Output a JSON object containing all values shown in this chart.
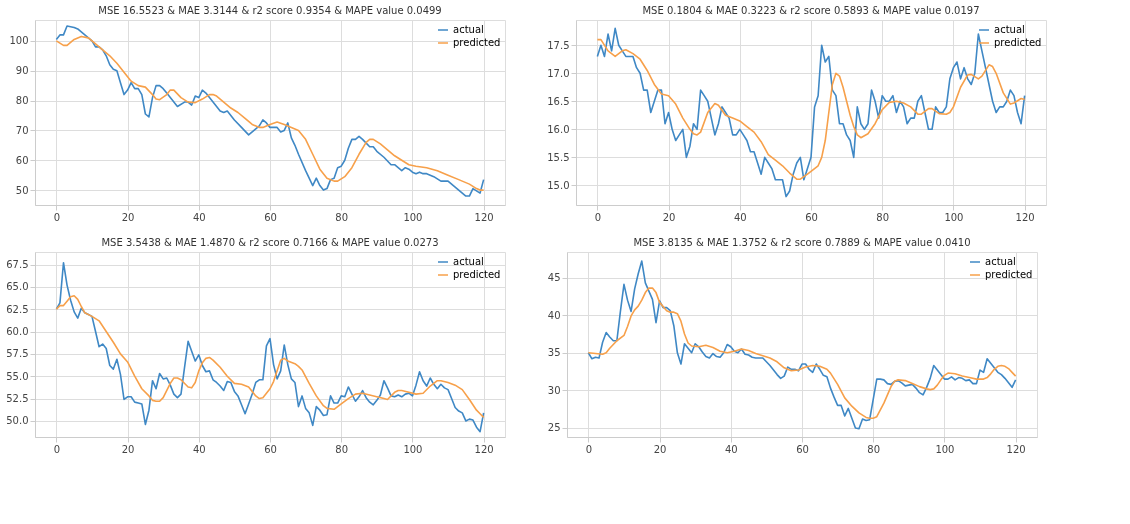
{
  "chart_data": [
    {
      "type": "line",
      "title": "MSE    16.5523  &  MAE    3.3144 & r2 score    0.9354 & MAPE value    0.0499",
      "xlim": [
        -6,
        126
      ],
      "xticks": [
        0,
        20,
        40,
        60,
        80,
        100,
        120
      ],
      "ylim": [
        45,
        107
      ],
      "yticks": [
        50,
        60,
        70,
        80,
        90,
        100
      ],
      "grid": true,
      "legend": "top right",
      "series": [
        {
          "name": "actual",
          "color": "#3f88c5",
          "x": [
            0,
            1,
            2,
            3,
            5,
            6,
            8,
            10,
            11,
            12,
            13,
            14,
            15,
            16,
            17,
            18,
            19,
            20,
            21,
            22,
            23,
            24,
            25,
            26,
            27,
            28,
            29,
            30,
            31,
            32,
            34,
            36,
            37,
            38,
            39,
            40,
            41,
            42,
            44,
            46,
            47,
            48,
            50,
            52,
            54,
            56,
            57,
            58,
            59,
            60,
            62,
            63,
            64,
            65,
            66,
            67,
            68,
            70,
            71,
            72,
            73,
            74,
            75,
            76,
            77,
            78,
            79,
            80,
            81,
            82,
            83,
            84,
            85,
            86,
            88,
            89,
            90,
            92,
            94,
            95,
            97,
            98,
            99,
            100,
            101,
            102,
            103,
            104,
            106,
            108,
            109,
            110,
            112,
            114,
            115,
            116,
            117,
            119,
            120
          ],
          "values": [
            100.5,
            102,
            102,
            105,
            104.5,
            104,
            102,
            100,
            98,
            98,
            97,
            95,
            92,
            90.5,
            90,
            86,
            82,
            83.5,
            86,
            84,
            84,
            82,
            75.5,
            74.5,
            81,
            85,
            85,
            84,
            82.5,
            81,
            78,
            79.5,
            79.5,
            78.5,
            81.5,
            81,
            83.5,
            82.5,
            79.5,
            76.5,
            76,
            76.5,
            73.5,
            71,
            68.5,
            70.5,
            71.5,
            73.5,
            72.5,
            71,
            71,
            69.5,
            70,
            72.5,
            67.5,
            65,
            62,
            56.5,
            54,
            51.5,
            54,
            51.5,
            50,
            50.5,
            53.5,
            54,
            57.5,
            58,
            60,
            64,
            67,
            67,
            68,
            67,
            64.5,
            64.5,
            63,
            61,
            58.5,
            58.5,
            56.5,
            57.5,
            57,
            56,
            55.5,
            56,
            55.5,
            55.5,
            54.5,
            53,
            53,
            53,
            51,
            49,
            48,
            48,
            50.5,
            49,
            53.5
          ]
        },
        {
          "name": "predicted",
          "color": "#f7a04a",
          "x": [
            0,
            2,
            3,
            5,
            7,
            9,
            11,
            13,
            15,
            17,
            19,
            21,
            23,
            25,
            27,
            28,
            29,
            31,
            32,
            33,
            35,
            37,
            39,
            41,
            43,
            44,
            45,
            47,
            49,
            51,
            53,
            55,
            57,
            58,
            60,
            62,
            64,
            66,
            68,
            70,
            72,
            74,
            76,
            78,
            79,
            81,
            83,
            85,
            87,
            88,
            89,
            91,
            93,
            95,
            97,
            99,
            101,
            104,
            107,
            110,
            113,
            116,
            118,
            119,
            120
          ],
          "values": [
            100,
            98.5,
            98.5,
            100.5,
            101.5,
            101,
            99,
            97,
            95,
            92.5,
            89.5,
            86.5,
            85,
            84.5,
            82,
            80.5,
            80.3,
            82,
            83.5,
            83.5,
            81,
            79.5,
            79.3,
            80.5,
            82,
            82,
            81.5,
            79.5,
            77.5,
            76,
            74,
            72,
            71,
            71,
            72,
            72.8,
            72,
            71,
            70,
            67,
            62,
            57,
            54,
            53,
            53,
            54.5,
            57.5,
            62,
            66,
            67,
            67,
            65.5,
            63.5,
            61.5,
            60,
            58.5,
            58,
            57.5,
            56.5,
            55,
            53.5,
            52,
            50.5,
            50,
            50
          ]
        }
      ]
    },
    {
      "type": "line",
      "title": "MSE    0.1804  &  MAE    0.3223 & r2 score    0.5893 & MAPE value    0.0197",
      "xlim": [
        -6,
        126
      ],
      "xticks": [
        0,
        20,
        40,
        60,
        80,
        100,
        120
      ],
      "ylim": [
        14.65,
        17.95
      ],
      "yticks": [
        {
          "value": 15,
          "label": "15.0"
        },
        15.5,
        {
          "value": 16,
          "label": "16.0"
        },
        16.5,
        {
          "value": 17,
          "label": "17.0"
        },
        17.5
      ],
      "grid": true,
      "legend": "top right",
      "series": [
        {
          "name": "actual",
          "color": "#3f88c5",
          "x": [
            0,
            1,
            2,
            3,
            4,
            5,
            6,
            7,
            8,
            10,
            11,
            12,
            13,
            14,
            15,
            16,
            17,
            18,
            19,
            20,
            21,
            22,
            23,
            24,
            25,
            26,
            27,
            28,
            29,
            30,
            31,
            32,
            33,
            34,
            35,
            36,
            37,
            38,
            39,
            40,
            41,
            42,
            43,
            44,
            45,
            46,
            47,
            48,
            49,
            50,
            51,
            52,
            53,
            54,
            55,
            56,
            57,
            58,
            59,
            60,
            61,
            62,
            63,
            64,
            65,
            66,
            67,
            68,
            69,
            70,
            71,
            72,
            73,
            74,
            75,
            76,
            77,
            78,
            79,
            80,
            81,
            82,
            83,
            84,
            85,
            86,
            87,
            88,
            89,
            90,
            91,
            92,
            93,
            94,
            95,
            96,
            97,
            98,
            99,
            100,
            101,
            102,
            103,
            104,
            105,
            106,
            107,
            108,
            109,
            110,
            111,
            112,
            113,
            114,
            115,
            116,
            117,
            118,
            119,
            120
          ],
          "values": [
            17.3,
            17.5,
            17.3,
            17.7,
            17.4,
            17.8,
            17.5,
            17.4,
            17.3,
            17.3,
            17.1,
            17.0,
            16.7,
            16.7,
            16.3,
            16.5,
            16.7,
            16.7,
            16.1,
            16.3,
            16.0,
            15.8,
            15.9,
            16.0,
            15.5,
            15.7,
            16.1,
            16.0,
            16.7,
            16.6,
            16.5,
            16.2,
            15.9,
            16.1,
            16.4,
            16.3,
            16.2,
            15.9,
            15.9,
            16.0,
            15.9,
            15.8,
            15.6,
            15.6,
            15.4,
            15.2,
            15.5,
            15.4,
            15.3,
            15.1,
            15.1,
            15.1,
            14.8,
            14.9,
            15.2,
            15.4,
            15.5,
            15.1,
            15.3,
            15.5,
            16.4,
            16.6,
            17.5,
            17.2,
            17.3,
            16.7,
            16.6,
            16.1,
            16.1,
            15.9,
            15.8,
            15.5,
            16.4,
            16.1,
            16.0,
            16.1,
            16.7,
            16.5,
            16.2,
            16.6,
            16.5,
            16.5,
            16.6,
            16.3,
            16.5,
            16.4,
            16.1,
            16.2,
            16.2,
            16.5,
            16.6,
            16.3,
            16.0,
            16.0,
            16.4,
            16.3,
            16.3,
            16.4,
            16.9,
            17.1,
            17.2,
            16.9,
            17.1,
            16.9,
            16.8,
            17.0,
            17.7,
            17.4,
            17.1,
            16.8,
            16.5,
            16.3,
            16.4,
            16.4,
            16.5,
            16.7,
            16.6,
            16.3,
            16.1,
            16.6
          ]
        },
        {
          "name": "predicted",
          "color": "#f7a04a",
          "x": [
            0,
            1,
            3,
            5,
            7,
            8,
            10,
            12,
            14,
            16,
            18,
            20,
            22,
            24,
            26,
            27,
            28,
            29,
            31,
            33,
            34,
            36,
            38,
            40,
            42,
            44,
            46,
            48,
            50,
            52,
            54,
            56,
            57,
            59,
            61,
            62,
            63,
            64,
            65,
            66,
            67,
            68,
            69,
            70,
            71,
            72,
            73,
            74,
            76,
            78,
            80,
            82,
            84,
            86,
            88,
            90,
            91,
            93,
            94,
            96,
            98,
            99,
            100,
            102,
            104,
            105,
            107,
            108,
            110,
            111,
            112,
            114,
            116,
            117,
            119,
            120
          ],
          "values": [
            17.6,
            17.6,
            17.4,
            17.3,
            17.4,
            17.42,
            17.35,
            17.25,
            17.05,
            16.8,
            16.63,
            16.6,
            16.45,
            16.2,
            16.0,
            15.92,
            15.9,
            15.95,
            16.3,
            16.46,
            16.43,
            16.25,
            16.2,
            16.15,
            16.05,
            15.95,
            15.78,
            15.55,
            15.45,
            15.35,
            15.22,
            15.11,
            15.11,
            15.2,
            15.3,
            15.35,
            15.5,
            15.8,
            16.3,
            16.8,
            17.0,
            16.95,
            16.75,
            16.5,
            16.25,
            16.05,
            15.9,
            15.85,
            15.92,
            16.1,
            16.35,
            16.48,
            16.5,
            16.47,
            16.4,
            16.27,
            16.27,
            16.37,
            16.37,
            16.28,
            16.27,
            16.3,
            16.4,
            16.75,
            16.97,
            16.98,
            16.9,
            16.95,
            17.15,
            17.12,
            17.0,
            16.65,
            16.45,
            16.47,
            16.55,
            16.53
          ]
        }
      ]
    },
    {
      "type": "line",
      "title": "MSE    3.5438  &  MAE    1.4870 & r2 score    0.7166 & MAPE value    0.0273",
      "xlim": [
        -6,
        126
      ],
      "xticks": [
        0,
        20,
        40,
        60,
        80,
        100,
        120
      ],
      "ylim": [
        48.2,
        68.9
      ],
      "yticks": [
        {
          "value": 50,
          "label": "50.0"
        },
        52.5,
        {
          "value": 55,
          "label": "55.0"
        },
        57.5,
        {
          "value": 60,
          "label": "60.0"
        },
        62.5,
        {
          "value": 65,
          "label": "65.0"
        },
        67.5
      ],
      "grid": true,
      "legend": "top right",
      "series": [
        {
          "name": "actual",
          "color": "#3f88c5",
          "x": [
            0,
            1,
            2,
            3,
            4,
            5,
            6,
            7,
            8,
            9,
            10,
            11,
            12,
            13,
            14,
            15,
            16,
            17,
            18,
            19,
            20,
            21,
            22,
            23,
            24,
            25,
            26,
            27,
            28,
            29,
            30,
            31,
            32,
            33,
            34,
            35,
            36,
            37,
            38,
            39,
            40,
            41,
            42,
            43,
            44,
            45,
            46,
            47,
            48,
            49,
            50,
            51,
            52,
            53,
            54,
            55,
            56,
            57,
            58,
            59,
            60,
            61,
            62,
            63,
            64,
            65,
            66,
            67,
            68,
            69,
            70,
            71,
            72,
            73,
            74,
            75,
            76,
            77,
            78,
            79,
            80,
            81,
            82,
            83,
            84,
            85,
            86,
            87,
            88,
            89,
            90,
            91,
            92,
            93,
            94,
            95,
            96,
            97,
            98,
            99,
            100,
            101,
            102,
            103,
            104,
            105,
            106,
            107,
            108,
            109,
            110,
            111,
            112,
            113,
            114,
            115,
            116,
            117,
            118,
            119,
            120
          ],
          "values": [
            62.5,
            63.2,
            67.7,
            65.2,
            63.5,
            62.2,
            61.5,
            62.6,
            62.1,
            61.9,
            61.7,
            60.0,
            58.3,
            58.6,
            58.1,
            56.2,
            55.8,
            56.9,
            55.2,
            52.4,
            52.7,
            52.7,
            52.1,
            52.0,
            51.9,
            49.6,
            51.2,
            54.5,
            53.6,
            55.3,
            54.7,
            54.8,
            54.0,
            53.0,
            52.6,
            53.0,
            56.0,
            58.9,
            57.8,
            56.7,
            57.4,
            56.2,
            55.5,
            55.6,
            54.6,
            54.3,
            53.9,
            53.4,
            54.4,
            54.3,
            53.3,
            52.8,
            51.8,
            50.8,
            51.9,
            53.0,
            54.3,
            54.6,
            54.6,
            58.4,
            59.2,
            56.3,
            54.7,
            55.6,
            58.5,
            56.3,
            54.7,
            54.3,
            51.6,
            52.8,
            51.4,
            50.9,
            49.5,
            51.6,
            51.2,
            50.6,
            50.7,
            52.8,
            52.0,
            52.0,
            52.8,
            52.7,
            53.8,
            53.0,
            52.2,
            52.7,
            53.4,
            52.6,
            52.1,
            51.8,
            52.3,
            52.9,
            54.5,
            53.7,
            52.8,
            52.7,
            52.9,
            52.7,
            53.0,
            53.1,
            52.8,
            54.0,
            55.5,
            54.5,
            53.9,
            54.8,
            54.1,
            53.6,
            54.1,
            53.7,
            53.5,
            52.5,
            51.5,
            51.1,
            50.9,
            50.0,
            50.2,
            50.1,
            49.3,
            48.8,
            50.9
          ]
        },
        {
          "name": "predicted",
          "color": "#f7a04a",
          "x": [
            0,
            1,
            2,
            3,
            4,
            5,
            6,
            7,
            8,
            10,
            12,
            14,
            16,
            18,
            20,
            22,
            24,
            26,
            27,
            28,
            29,
            30,
            32,
            33,
            34,
            35,
            37,
            38,
            39,
            40,
            41,
            42,
            43,
            44,
            46,
            48,
            50,
            52,
            54,
            56,
            57,
            58,
            60,
            61,
            62,
            63,
            64,
            65,
            67,
            68,
            69,
            71,
            73,
            75,
            76,
            78,
            80,
            82,
            84,
            86,
            88,
            90,
            92,
            93,
            95,
            96,
            97,
            99,
            101,
            103,
            105,
            107,
            108,
            110,
            112,
            114,
            116,
            118,
            119,
            120
          ],
          "values": [
            62.5,
            62.9,
            62.9,
            63.4,
            63.9,
            64.0,
            63.6,
            62.8,
            62.1,
            61.7,
            61.2,
            60.0,
            58.8,
            57.5,
            56.6,
            55.0,
            53.6,
            52.8,
            52.3,
            52.2,
            52.2,
            52.6,
            54.2,
            54.8,
            54.8,
            54.6,
            53.8,
            53.7,
            54.3,
            55.6,
            56.5,
            57.0,
            57.1,
            56.8,
            56.0,
            55.0,
            54.2,
            54.1,
            53.8,
            52.8,
            52.5,
            52.6,
            53.6,
            54.4,
            55.6,
            56.8,
            57.0,
            56.7,
            56.4,
            56.1,
            55.7,
            54.2,
            52.8,
            51.7,
            51.4,
            51.3,
            51.9,
            52.5,
            53.0,
            53.1,
            52.9,
            52.7,
            52.5,
            52.4,
            53.2,
            53.4,
            53.4,
            53.2,
            53.0,
            53.1,
            53.9,
            54.5,
            54.5,
            54.3,
            54.0,
            53.5,
            52.4,
            51.2,
            50.8,
            50.4
          ]
        }
      ]
    },
    {
      "type": "line",
      "title": "MSE    3.8135  &  MAE    1.3752 & r2 score    0.7889 & MAPE value    0.0410",
      "xlim": [
        -6,
        126
      ],
      "xticks": [
        0,
        20,
        40,
        60,
        80,
        100,
        120
      ],
      "ylim": [
        23.8,
        48.4
      ],
      "yticks": [
        25,
        30,
        35,
        40,
        45
      ],
      "grid": true,
      "legend": "top right",
      "series": [
        {
          "name": "actual",
          "color": "#3f88c5",
          "x": [
            0,
            1,
            2,
            3,
            4,
            5,
            6,
            7,
            8,
            9,
            10,
            11,
            12,
            13,
            14,
            15,
            16,
            17,
            18,
            19,
            20,
            21,
            22,
            23,
            24,
            25,
            26,
            27,
            28,
            29,
            30,
            31,
            32,
            33,
            34,
            35,
            36,
            37,
            38,
            39,
            40,
            41,
            42,
            43,
            44,
            45,
            46,
            47,
            48,
            49,
            50,
            51,
            52,
            53,
            54,
            55,
            56,
            57,
            58,
            59,
            60,
            61,
            62,
            63,
            64,
            65,
            66,
            67,
            68,
            69,
            70,
            71,
            72,
            73,
            74,
            75,
            76,
            77,
            78,
            79,
            80,
            81,
            82,
            83,
            84,
            85,
            86,
            87,
            88,
            89,
            90,
            91,
            92,
            93,
            94,
            95,
            96,
            97,
            98,
            99,
            100,
            101,
            102,
            103,
            104,
            105,
            106,
            107,
            108,
            109,
            110,
            111,
            112,
            113,
            114,
            115,
            116,
            117,
            118,
            119,
            120
          ],
          "values": [
            35.0,
            34.2,
            34.4,
            34.3,
            36.4,
            37.7,
            37.1,
            36.6,
            36.6,
            40.5,
            44.1,
            42.0,
            40.5,
            43.5,
            45.5,
            47.2,
            44.3,
            43.2,
            42.1,
            39.0,
            41.9,
            41.0,
            41.0,
            40.6,
            38.6,
            35.0,
            33.5,
            36.2,
            35.6,
            35.0,
            36.2,
            35.8,
            35.1,
            34.5,
            34.3,
            34.9,
            34.5,
            34.4,
            35.0,
            36.1,
            35.8,
            35.2,
            35.0,
            35.5,
            34.8,
            34.7,
            34.4,
            34.3,
            34.3,
            34.3,
            33.8,
            33.3,
            32.7,
            32.1,
            31.6,
            31.9,
            33.1,
            32.8,
            32.8,
            32.6,
            33.5,
            33.5,
            32.8,
            32.4,
            33.5,
            32.8,
            32.0,
            31.8,
            30.3,
            29.1,
            28.0,
            28.0,
            26.6,
            27.6,
            26.3,
            25.0,
            24.9,
            26.2,
            26.0,
            26.1,
            28.8,
            31.5,
            31.5,
            31.4,
            30.9,
            30.8,
            31.2,
            31.3,
            31.0,
            30.6,
            30.7,
            30.8,
            30.3,
            29.7,
            29.4,
            30.4,
            31.6,
            33.3,
            32.7,
            32.1,
            31.5,
            31.5,
            31.8,
            31.4,
            31.7,
            31.6,
            31.3,
            31.4,
            30.9,
            30.9,
            32.7,
            32.4,
            34.2,
            33.6,
            33.0,
            32.4,
            32.1,
            31.6,
            31.0,
            30.4,
            31.4
          ]
        },
        {
          "name": "predicted",
          "color": "#f7a04a",
          "x": [
            0,
            2,
            4,
            5,
            6,
            8,
            10,
            11,
            12,
            13,
            14,
            15,
            16,
            17,
            18,
            19,
            20,
            22,
            23,
            24,
            25,
            26,
            27,
            28,
            29,
            31,
            33,
            35,
            37,
            39,
            41,
            43,
            45,
            47,
            49,
            51,
            53,
            55,
            57,
            59,
            61,
            63,
            65,
            67,
            68,
            70,
            72,
            74,
            76,
            78,
            79,
            80,
            81,
            83,
            85,
            86,
            87,
            89,
            91,
            93,
            95,
            96,
            97,
            98,
            99,
            100,
            101,
            103,
            105,
            107,
            109,
            111,
            112,
            113,
            114,
            115,
            116,
            117,
            118,
            119,
            120
          ],
          "values": [
            35.0,
            34.9,
            34.8,
            35.0,
            35.6,
            36.6,
            37.3,
            38.5,
            39.9,
            40.7,
            41.2,
            42.0,
            43.0,
            43.6,
            43.6,
            43.0,
            41.7,
            40.6,
            40.4,
            40.4,
            40.2,
            39.2,
            37.5,
            36.3,
            35.9,
            35.8,
            36.0,
            35.7,
            35.2,
            35.0,
            35.2,
            35.5,
            35.3,
            34.9,
            34.6,
            34.3,
            33.8,
            33.0,
            32.6,
            32.7,
            33.1,
            33.3,
            33.2,
            32.8,
            32.3,
            30.8,
            29.0,
            27.9,
            27.0,
            26.4,
            26.3,
            26.3,
            26.5,
            28.3,
            30.5,
            31.2,
            31.4,
            31.3,
            30.9,
            30.5,
            30.2,
            30.1,
            30.2,
            30.7,
            31.4,
            32.0,
            32.3,
            32.2,
            31.9,
            31.7,
            31.5,
            31.5,
            31.7,
            32.2,
            32.8,
            33.2,
            33.3,
            33.2,
            32.9,
            32.4,
            31.9
          ]
        }
      ]
    }
  ]
}
